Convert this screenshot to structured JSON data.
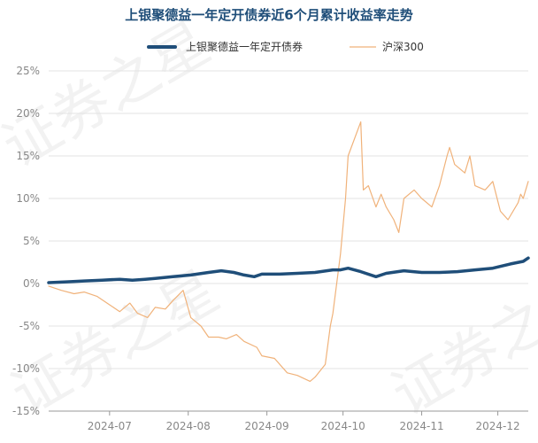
{
  "chart_data": {
    "type": "line",
    "title": "上银聚德益一年定开债券近6个月累计收益率走势",
    "watermark": "证券之星",
    "xlabel": "",
    "ylabel": "",
    "ylim": [
      -15,
      25
    ],
    "yticks": [
      -15,
      -10,
      -5,
      0,
      5,
      10,
      15,
      20,
      25
    ],
    "ytick_labels": [
      "-15%",
      "-10%",
      "-5%",
      "0%",
      "5%",
      "10%",
      "15%",
      "20%",
      "25%"
    ],
    "xlim": [
      "2024-06-07",
      "2024-12-13"
    ],
    "xticks": [
      "2024-07-01",
      "2024-08-01",
      "2024-09-01",
      "2024-10-01",
      "2024-11-01",
      "2024-12-01"
    ],
    "xtick_labels": [
      "2024-07",
      "2024-08",
      "2024-09",
      "2024-10",
      "2024-11",
      "2024-12"
    ],
    "grid": true,
    "legend_position": "top",
    "series": [
      {
        "name": "上银聚德益一年定开债券",
        "color": "#1f4e79",
        "points": [
          [
            "2024-06-07",
            0.1
          ],
          [
            "2024-06-14",
            0.2
          ],
          [
            "2024-06-21",
            0.3
          ],
          [
            "2024-06-28",
            0.4
          ],
          [
            "2024-07-05",
            0.5
          ],
          [
            "2024-07-10",
            0.4
          ],
          [
            "2024-07-15",
            0.5
          ],
          [
            "2024-07-19",
            0.6
          ],
          [
            "2024-07-26",
            0.8
          ],
          [
            "2024-08-02",
            1.0
          ],
          [
            "2024-08-09",
            1.3
          ],
          [
            "2024-08-14",
            1.5
          ],
          [
            "2024-08-19",
            1.3
          ],
          [
            "2024-08-23",
            1.0
          ],
          [
            "2024-08-27",
            0.8
          ],
          [
            "2024-08-30",
            1.1
          ],
          [
            "2024-09-06",
            1.1
          ],
          [
            "2024-09-13",
            1.2
          ],
          [
            "2024-09-20",
            1.3
          ],
          [
            "2024-09-27",
            1.6
          ],
          [
            "2024-09-30",
            1.6
          ],
          [
            "2024-10-03",
            1.8
          ],
          [
            "2024-10-08",
            1.4
          ],
          [
            "2024-10-14",
            0.8
          ],
          [
            "2024-10-18",
            1.2
          ],
          [
            "2024-10-25",
            1.5
          ],
          [
            "2024-11-01",
            1.3
          ],
          [
            "2024-11-08",
            1.3
          ],
          [
            "2024-11-15",
            1.4
          ],
          [
            "2024-11-22",
            1.6
          ],
          [
            "2024-11-29",
            1.8
          ],
          [
            "2024-12-06",
            2.3
          ],
          [
            "2024-12-11",
            2.6
          ],
          [
            "2024-12-13",
            3.0
          ]
        ]
      },
      {
        "name": "沪深300",
        "color": "#f0b27a",
        "points": [
          [
            "2024-06-07",
            -0.3
          ],
          [
            "2024-06-12",
            -0.8
          ],
          [
            "2024-06-17",
            -1.2
          ],
          [
            "2024-06-21",
            -1.0
          ],
          [
            "2024-06-26",
            -1.5
          ],
          [
            "2024-07-01",
            -2.5
          ],
          [
            "2024-07-05",
            -3.3
          ],
          [
            "2024-07-09",
            -2.3
          ],
          [
            "2024-07-12",
            -3.5
          ],
          [
            "2024-07-16",
            -4.0
          ],
          [
            "2024-07-19",
            -2.8
          ],
          [
            "2024-07-23",
            -3.0
          ],
          [
            "2024-07-26",
            -2.0
          ],
          [
            "2024-07-30",
            -0.8
          ],
          [
            "2024-08-02",
            -4.0
          ],
          [
            "2024-08-06",
            -5.0
          ],
          [
            "2024-08-09",
            -6.3
          ],
          [
            "2024-08-13",
            -6.3
          ],
          [
            "2024-08-16",
            -6.5
          ],
          [
            "2024-08-20",
            -6.0
          ],
          [
            "2024-08-23",
            -6.8
          ],
          [
            "2024-08-28",
            -7.5
          ],
          [
            "2024-08-30",
            -8.5
          ],
          [
            "2024-09-04",
            -8.8
          ],
          [
            "2024-09-09",
            -10.5
          ],
          [
            "2024-09-13",
            -10.8
          ],
          [
            "2024-09-18",
            -11.5
          ],
          [
            "2024-09-20",
            -11.0
          ],
          [
            "2024-09-24",
            -9.5
          ],
          [
            "2024-09-26",
            -5.0
          ],
          [
            "2024-09-27",
            -3.5
          ],
          [
            "2024-09-30",
            3.5
          ],
          [
            "2024-10-02",
            10.0
          ],
          [
            "2024-10-03",
            15.0
          ],
          [
            "2024-10-08",
            19.0
          ],
          [
            "2024-10-09",
            11.0
          ],
          [
            "2024-10-11",
            11.5
          ],
          [
            "2024-10-14",
            9.0
          ],
          [
            "2024-10-16",
            10.5
          ],
          [
            "2024-10-18",
            9.0
          ],
          [
            "2024-10-21",
            7.5
          ],
          [
            "2024-10-23",
            6.0
          ],
          [
            "2024-10-25",
            10.0
          ],
          [
            "2024-10-29",
            11.0
          ],
          [
            "2024-11-01",
            10.0
          ],
          [
            "2024-11-05",
            9.0
          ],
          [
            "2024-11-08",
            11.5
          ],
          [
            "2024-11-11",
            15.0
          ],
          [
            "2024-11-12",
            16.0
          ],
          [
            "2024-11-14",
            14.0
          ],
          [
            "2024-11-18",
            13.0
          ],
          [
            "2024-11-20",
            15.0
          ],
          [
            "2024-11-22",
            11.5
          ],
          [
            "2024-11-26",
            11.0
          ],
          [
            "2024-11-29",
            12.0
          ],
          [
            "2024-12-02",
            8.5
          ],
          [
            "2024-12-05",
            7.5
          ],
          [
            "2024-12-09",
            9.5
          ],
          [
            "2024-12-10",
            10.5
          ],
          [
            "2024-12-11",
            10.0
          ],
          [
            "2024-12-12",
            11.0
          ],
          [
            "2024-12-13",
            12.0
          ]
        ]
      }
    ]
  }
}
